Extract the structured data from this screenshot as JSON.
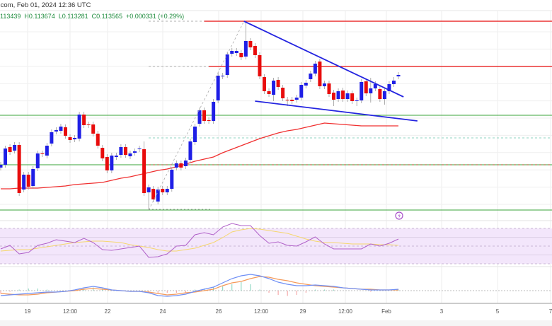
{
  "header": {
    "source_line": ".com, Feb 01, 2024 12:36 UTC",
    "open": "113439",
    "high": "H0.113674",
    "low": "L0.113281",
    "close": "C0.113565",
    "change": "+0.000331 (+0.29%)"
  },
  "colors": {
    "up": "#1f1fe6",
    "down": "#e80c0c",
    "ma": "#f03030",
    "support": "#3aa33a",
    "trendline": "#2424e0",
    "rsi": "#b060c8",
    "rsi_ma": "#f5d76e",
    "macd": "#6f8ff5",
    "signal": "#f59a5a"
  },
  "chart_data": {
    "type": "candlestick",
    "title": "",
    "x_tick_labels": [
      "19",
      "12:00",
      "22",
      "24",
      "26",
      "12:00",
      "29",
      "12:00",
      "Feb",
      "3",
      "5",
      "7"
    ],
    "ohlc": [
      [
        0.11096,
        0.11112,
        0.11088,
        0.11104
      ],
      [
        0.11104,
        0.11158,
        0.11096,
        0.1115
      ],
      [
        0.11154,
        0.11162,
        0.11132,
        0.1114
      ],
      [
        0.11144,
        0.11168,
        0.11136,
        0.1116
      ],
      [
        0.1116,
        0.11168,
        0.11016,
        0.11024
      ],
      [
        0.11034,
        0.11084,
        0.11026,
        0.11076
      ],
      [
        0.11076,
        0.11084,
        0.11034,
        0.11042
      ],
      [
        0.11044,
        0.111,
        0.11036,
        0.11092
      ],
      [
        0.11094,
        0.11144,
        0.11086,
        0.11136
      ],
      [
        0.11136,
        0.11144,
        0.11126,
        0.11134
      ],
      [
        0.1113,
        0.11166,
        0.11122,
        0.11158
      ],
      [
        0.11164,
        0.11204,
        0.11156,
        0.11196
      ],
      [
        0.11198,
        0.1121,
        0.1119,
        0.11202
      ],
      [
        0.112,
        0.1122,
        0.11192,
        0.11212
      ],
      [
        0.1121,
        0.11218,
        0.11178,
        0.11186
      ],
      [
        0.11182,
        0.1119,
        0.11166,
        0.11174
      ],
      [
        0.11176,
        0.11188,
        0.11168,
        0.1118
      ],
      [
        0.11178,
        0.11254,
        0.1117,
        0.11246
      ],
      [
        0.11246,
        0.11254,
        0.11208,
        0.11216
      ],
      [
        0.11218,
        0.11226,
        0.11208,
        0.11216
      ],
      [
        0.11218,
        0.11226,
        0.11184,
        0.11192
      ],
      [
        0.11192,
        0.112,
        0.1115,
        0.11158
      ],
      [
        0.11152,
        0.1116,
        0.11114,
        0.11122
      ],
      [
        0.11126,
        0.11134,
        0.1108,
        0.11088
      ],
      [
        0.11088,
        0.11138,
        0.1108,
        0.1113
      ],
      [
        0.11126,
        0.11138,
        0.11118,
        0.1113
      ],
      [
        0.11132,
        0.11162,
        0.11124,
        0.11154
      ],
      [
        0.11154,
        0.11162,
        0.11124,
        0.11132
      ],
      [
        0.11128,
        0.11144,
        0.1112,
        0.11136
      ],
      [
        0.11138,
        0.1115,
        0.1113,
        0.11142
      ],
      [
        0.11148,
        0.11158,
        0.1114,
        0.1115
      ],
      [
        0.11148,
        0.1117,
        0.11016,
        0.11024
      ],
      [
        0.11026,
        0.11048,
        0.10976,
        0.1104
      ],
      [
        0.11036,
        0.11044,
        0.10998,
        0.11006
      ],
      [
        0.11,
        0.11042,
        0.10992,
        0.11034
      ],
      [
        0.11036,
        0.11044,
        0.11018,
        0.11026
      ],
      [
        0.11026,
        0.11044,
        0.11018,
        0.11036
      ],
      [
        0.11036,
        0.11098,
        0.11028,
        0.1109
      ],
      [
        0.11096,
        0.11116,
        0.11088,
        0.11108
      ],
      [
        0.11108,
        0.11116,
        0.11088,
        0.11096
      ],
      [
        0.111,
        0.11124,
        0.11092,
        0.11116
      ],
      [
        0.11118,
        0.11178,
        0.1111,
        0.1117
      ],
      [
        0.11168,
        0.1122,
        0.1116,
        0.11212
      ],
      [
        0.1122,
        0.11266,
        0.11212,
        0.11258
      ],
      [
        0.11258,
        0.11266,
        0.1122,
        0.11228
      ],
      [
        0.1123,
        0.11238,
        0.1122,
        0.11228
      ],
      [
        0.11228,
        0.1129,
        0.1122,
        0.11282
      ],
      [
        0.11286,
        0.11364,
        0.11278,
        0.11356
      ],
      [
        0.11354,
        0.11364,
        0.11346,
        0.11356
      ],
      [
        0.11358,
        0.11424,
        0.1135,
        0.11416
      ],
      [
        0.11418,
        0.11434,
        0.1141,
        0.11426
      ],
      [
        0.1142,
        0.11434,
        0.11412,
        0.11426
      ],
      [
        0.1142,
        0.11428,
        0.114,
        0.11408
      ],
      [
        0.1141,
        0.1151,
        0.11402,
        0.11454
      ],
      [
        0.11454,
        0.11462,
        0.11428,
        0.11436
      ],
      [
        0.1144,
        0.11448,
        0.11406,
        0.11414
      ],
      [
        0.11414,
        0.11422,
        0.11346,
        0.11354
      ],
      [
        0.11352,
        0.1136,
        0.11304,
        0.11312
      ],
      [
        0.11312,
        0.1132,
        0.11296,
        0.11304
      ],
      [
        0.11302,
        0.1135,
        0.11284,
        0.11342
      ],
      [
        0.11344,
        0.11352,
        0.11316,
        0.11324
      ],
      [
        0.11322,
        0.1133,
        0.11284,
        0.11292
      ],
      [
        0.11288,
        0.11296,
        0.1127,
        0.11286
      ],
      [
        0.11288,
        0.11296,
        0.11276,
        0.11284
      ],
      [
        0.11288,
        0.11302,
        0.1128,
        0.11294
      ],
      [
        0.11294,
        0.11338,
        0.11286,
        0.1133
      ],
      [
        0.11328,
        0.11344,
        0.1132,
        0.11336
      ],
      [
        0.11346,
        0.1137,
        0.11338,
        0.11362
      ],
      [
        0.11362,
        0.11398,
        0.11354,
        0.1139
      ],
      [
        0.11396,
        0.11404,
        0.11318,
        0.11326
      ],
      [
        0.11326,
        0.11342,
        0.11318,
        0.11334
      ],
      [
        0.11334,
        0.11342,
        0.11296,
        0.11304
      ],
      [
        0.11308,
        0.11316,
        0.1127,
        0.11288
      ],
      [
        0.1129,
        0.1132,
        0.11282,
        0.11312
      ],
      [
        0.11314,
        0.11322,
        0.11282,
        0.1129
      ],
      [
        0.1129,
        0.11314,
        0.11282,
        0.11306
      ],
      [
        0.11306,
        0.11314,
        0.11276,
        0.11284
      ],
      [
        0.11284,
        0.11294,
        0.1127,
        0.11286
      ],
      [
        0.11286,
        0.11346,
        0.11278,
        0.11338
      ],
      [
        0.1134,
        0.11348,
        0.11298,
        0.11306
      ],
      [
        0.11306,
        0.1135,
        0.1128,
        0.1132
      ],
      [
        0.1132,
        0.1134,
        0.11312,
        0.11332
      ],
      [
        0.11318,
        0.11326,
        0.11282,
        0.1129
      ],
      [
        0.1129,
        0.1132,
        0.11274,
        0.11312
      ],
      [
        0.11312,
        0.1134,
        0.11304,
        0.11332
      ],
      [
        0.11332,
        0.11352,
        0.11324,
        0.11342
      ],
      [
        0.11354,
        0.11366,
        0.11346,
        0.11358
      ]
    ],
    "ma_step": 2,
    "ma": [
      0.11036,
      0.11036,
      0.11038,
      0.11038,
      0.11038,
      0.1104,
      0.11042,
      0.11044,
      0.11048,
      0.1105,
      0.11052,
      0.11054,
      0.1106,
      0.11066,
      0.1107,
      0.11076,
      0.11082,
      0.11088,
      0.11092,
      0.11098,
      0.11106,
      0.11114,
      0.1112,
      0.11126,
      0.11138,
      0.11148,
      0.11158,
      0.11168,
      0.11178,
      0.11186,
      0.11194,
      0.112,
      0.11204,
      0.1121,
      0.11216,
      0.11222,
      0.1122,
      0.11218,
      0.11216,
      0.11214,
      0.11214,
      0.11214,
      0.11214,
      0.11214
    ],
    "levels": [
      {
        "price": 0.1151,
        "type": "resistance",
        "from_index": 44
      },
      {
        "price": 0.11382,
        "type": "resistance",
        "from_index": 45
      },
      {
        "price": 0.11244,
        "type": "support",
        "from_index": 0
      },
      {
        "price": 0.1118,
        "type": "dashed",
        "from_index": 32
      },
      {
        "price": 0.11104,
        "type": "support",
        "from_index": 0
      },
      {
        "price": 0.10976,
        "type": "support",
        "from_index": 0
      }
    ],
    "trendlines": [
      {
        "name": "upper",
        "from": [
          52.6,
          0.1151
        ],
        "to": [
          87.1,
          0.11296
        ]
      },
      {
        "name": "lower",
        "from": [
          55,
          0.11284
        ],
        "to": [
          90.1,
          0.11228
        ]
      },
      {
        "name": "fib-diagonal",
        "from": [
          32,
          0.10976
        ],
        "to": [
          52.6,
          0.1151
        ]
      }
    ],
    "rsi": {
      "range": [
        30,
        70
      ],
      "step": 2,
      "values": [
        46.8,
        50.8,
        41.2,
        42.8,
        50.8,
        53.2,
        57.2,
        55.6,
        54,
        58.8,
        54,
        46,
        45.2,
        46.8,
        48.4,
        50,
        37.2,
        38,
        41.2,
        50,
        50.8,
        62.8,
        65.2,
        62.8,
        71.6,
        75.6,
        73.2,
        73.2,
        62,
        53.2,
        54.8,
        50.8,
        50,
        54.8,
        60.4,
        52.4,
        46.8,
        46.8,
        46.8,
        46.8,
        52.4,
        50,
        53.2,
        58
      ],
      "ma": [
        44.4,
        45.2,
        46,
        46,
        47.6,
        49.2,
        50.8,
        52.4,
        54,
        54.8,
        55.6,
        55.6,
        54.8,
        54,
        51.6,
        50,
        48.4,
        46,
        44.4,
        44.4,
        46,
        47.6,
        50.8,
        54,
        59.6,
        66,
        68.4,
        70,
        69.2,
        67.6,
        66,
        64.4,
        61.2,
        58,
        55.6,
        54,
        54,
        53.2,
        52.4,
        52.4,
        52.4,
        51.6,
        51.6,
        50.8
      ]
    },
    "macd": {
      "step": 2,
      "macd": [
        -7e-05,
        -6e-05,
        -5e-05,
        -4e-05,
        -3e-05,
        -2e-05,
        -2e-05,
        -1e-05,
        1e-05,
        4e-05,
        6e-05,
        4e-05,
        1e-05,
        0,
        -1e-05,
        -1e-05,
        -3e-05,
        -7e-05,
        -8e-05,
        -7e-05,
        -5e-05,
        -1e-05,
        2e-05,
        5e-05,
        0.00011,
        0.00017,
        0.00021,
        0.00023,
        0.00021,
        0.00017,
        0.00012,
        9e-05,
        7e-05,
        7e-05,
        8e-05,
        7e-05,
        6e-05,
        4e-05,
        3e-05,
        2e-05,
        1e-05,
        1e-05,
        1e-05,
        2e-05
      ],
      "signal": [
        -4e-05,
        -5e-05,
        -6e-05,
        -6e-05,
        -5e-05,
        -3e-05,
        -2e-05,
        -1e-05,
        0,
        2e-05,
        3e-05,
        2e-05,
        1e-05,
        0,
        -1e-05,
        -1e-05,
        -2e-05,
        -4e-05,
        -6e-05,
        -5e-05,
        -3e-05,
        -2e-05,
        0,
        2e-05,
        7e-05,
        0.00011,
        0.00013,
        0.00017,
        0.0002,
        0.00019,
        0.00016,
        0.00014,
        0.00011,
        9e-05,
        7e-05,
        6e-05,
        5e-05,
        4e-05,
        3e-05,
        2e-05,
        2e-05,
        1e-05,
        1e-05,
        1e-05
      ]
    }
  }
}
